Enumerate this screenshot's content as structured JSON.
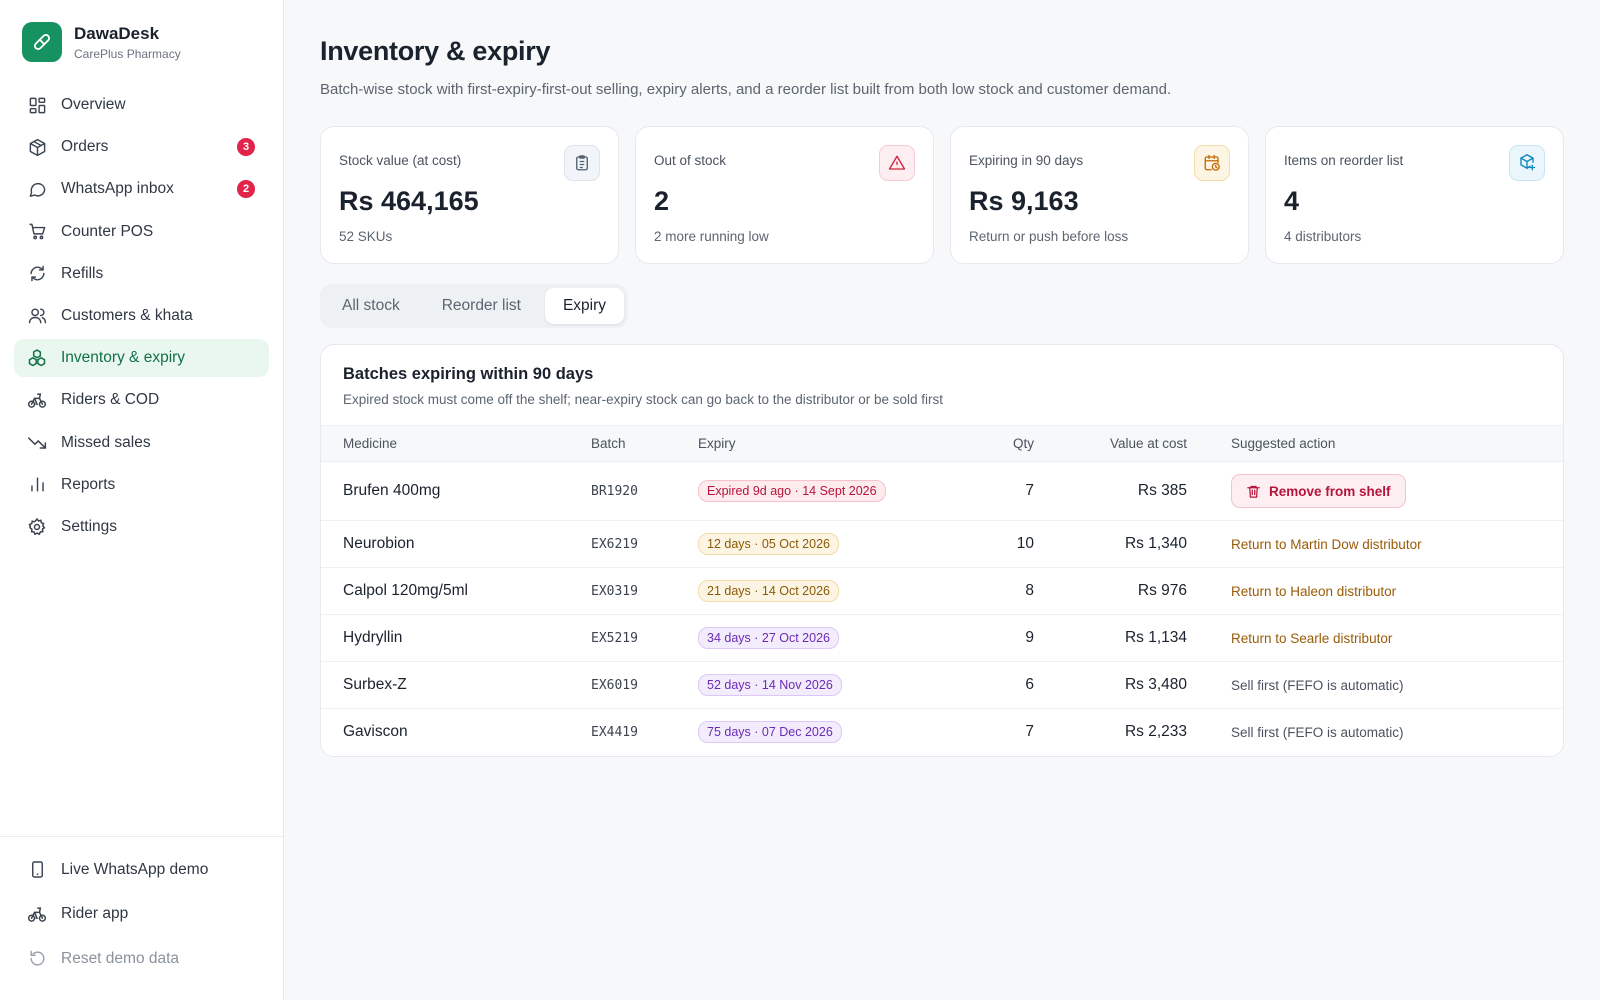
{
  "brand": {
    "name": "DawaDesk",
    "subtitle": "CarePlus Pharmacy"
  },
  "sidebar": {
    "items": [
      {
        "label": "Overview",
        "icon": "grid-icon"
      },
      {
        "label": "Orders",
        "icon": "package-icon",
        "badge": "3"
      },
      {
        "label": "WhatsApp inbox",
        "icon": "chat-bubble-icon",
        "badge": "2"
      },
      {
        "label": "Counter POS",
        "icon": "cart-icon"
      },
      {
        "label": "Refills",
        "icon": "refresh-icon"
      },
      {
        "label": "Customers & khata",
        "icon": "users-icon"
      },
      {
        "label": "Inventory & expiry",
        "icon": "boxes-icon",
        "active": true
      },
      {
        "label": "Riders & COD",
        "icon": "bike-icon"
      },
      {
        "label": "Missed sales",
        "icon": "trend-down-icon"
      },
      {
        "label": "Reports",
        "icon": "bar-chart-icon"
      },
      {
        "label": "Settings",
        "icon": "gear-icon"
      }
    ],
    "bottom": [
      {
        "label": "Live WhatsApp demo",
        "icon": "phone-icon"
      },
      {
        "label": "Rider app",
        "icon": "bike-icon"
      },
      {
        "label": "Reset demo data",
        "icon": "reset-icon"
      }
    ]
  },
  "page": {
    "title": "Inventory & expiry",
    "subtitle": "Batch-wise stock with first-expiry-first-out selling, expiry alerts, and a reorder list built from both low stock and customer demand."
  },
  "stats": [
    {
      "label": "Stock value (at cost)",
      "value": "Rs 464,165",
      "hint": "52 SKUs",
      "icon": "clipboard-icon",
      "color": "#64748b"
    },
    {
      "label": "Out of stock",
      "value": "2",
      "hint": "2 more running low",
      "icon": "warning-icon",
      "color": "#e0244a"
    },
    {
      "label": "Expiring in 90 days",
      "value": "Rs 9,163",
      "hint": "Return or push before loss",
      "icon": "calendar-clock-icon",
      "color": "#d97706"
    },
    {
      "label": "Items on reorder list",
      "value": "4",
      "hint": "4 distributors",
      "icon": "box-plus-icon",
      "color": "#0ea5e9"
    }
  ],
  "tabs": [
    {
      "label": "All stock"
    },
    {
      "label": "Reorder list"
    },
    {
      "label": "Expiry",
      "active": true
    }
  ],
  "panel": {
    "title": "Batches expiring within 90 days",
    "subtitle": "Expired stock must come off the shelf; near-expiry stock can go back to the distributor or be sold first",
    "columns": [
      "Medicine",
      "Batch",
      "Expiry",
      "Qty",
      "Value at cost",
      "Suggested action"
    ],
    "rows": [
      {
        "medicine": "Brufen 400mg",
        "batch": "BR1920",
        "expiry": "Expired 9d ago · 14 Sept 2026",
        "tone": "red",
        "qty": "7",
        "value": "Rs 385",
        "action": "Remove from shelf",
        "action_type": "button"
      },
      {
        "medicine": "Neurobion",
        "batch": "EX6219",
        "expiry": "12 days · 05 Oct 2026",
        "tone": "amber",
        "qty": "10",
        "value": "Rs 1,340",
        "action": "Return to Martin Dow distributor",
        "action_type": "amber"
      },
      {
        "medicine": "Calpol 120mg/5ml",
        "batch": "EX0319",
        "expiry": "21 days · 14 Oct 2026",
        "tone": "amber",
        "qty": "8",
        "value": "Rs 976",
        "action": "Return to Haleon distributor",
        "action_type": "amber"
      },
      {
        "medicine": "Hydryllin",
        "batch": "EX5219",
        "expiry": "34 days · 27 Oct 2026",
        "tone": "purple",
        "qty": "9",
        "value": "Rs 1,134",
        "action": "Return to Searle distributor",
        "action_type": "amber"
      },
      {
        "medicine": "Surbex-Z",
        "batch": "EX6019",
        "expiry": "52 days · 14 Nov 2026",
        "tone": "purple",
        "qty": "6",
        "value": "Rs 3,480",
        "action": "Sell first (FEFO is automatic)",
        "action_type": "gray"
      },
      {
        "medicine": "Gaviscon",
        "batch": "EX4419",
        "expiry": "75 days · 07 Dec 2026",
        "tone": "purple",
        "qty": "7",
        "value": "Rs 2,233",
        "action": "Sell first (FEFO is automatic)",
        "action_type": "gray"
      }
    ]
  }
}
